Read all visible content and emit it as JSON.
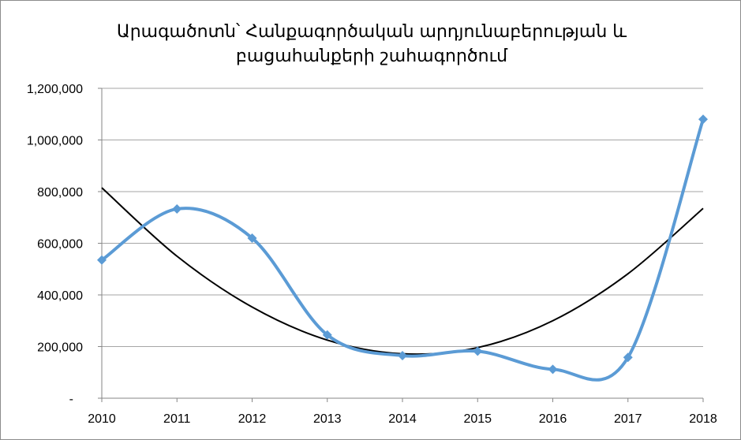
{
  "chart_data": {
    "type": "line",
    "title_lines": [
      "Արագածոտն՝ Հանքագործական արդյունաբերության և",
      "բացաhանքերի շահագործում"
    ],
    "x": [
      2010,
      2011,
      2012,
      2013,
      2014,
      2015,
      2016,
      2017,
      2018
    ],
    "x_tick_labels": [
      "2010",
      "2011",
      "2012",
      "2013",
      "2014",
      "2015",
      "2016",
      "2017",
      "2018"
    ],
    "y_tick_labels": [
      "-",
      "200,000",
      "400,000",
      "600,000",
      "800,000",
      "1,000,000",
      "1,200,000"
    ],
    "y_ticks": [
      0,
      200000,
      400000,
      600000,
      800000,
      1000000,
      1200000
    ],
    "ylim": [
      0,
      1200000
    ],
    "grid": true,
    "series": [
      {
        "values": [
          535000,
          733000,
          620000,
          245000,
          165000,
          182000,
          112000,
          158000,
          1080000
        ],
        "color": "#5b9bd5",
        "marker": "diamond",
        "smooth": true
      }
    ],
    "trendline": {
      "type": "polynomial",
      "color": "#000000",
      "values": [
        815000,
        550000,
        353000,
        225000,
        172000,
        196000,
        300000,
        482000,
        735000
      ]
    }
  }
}
